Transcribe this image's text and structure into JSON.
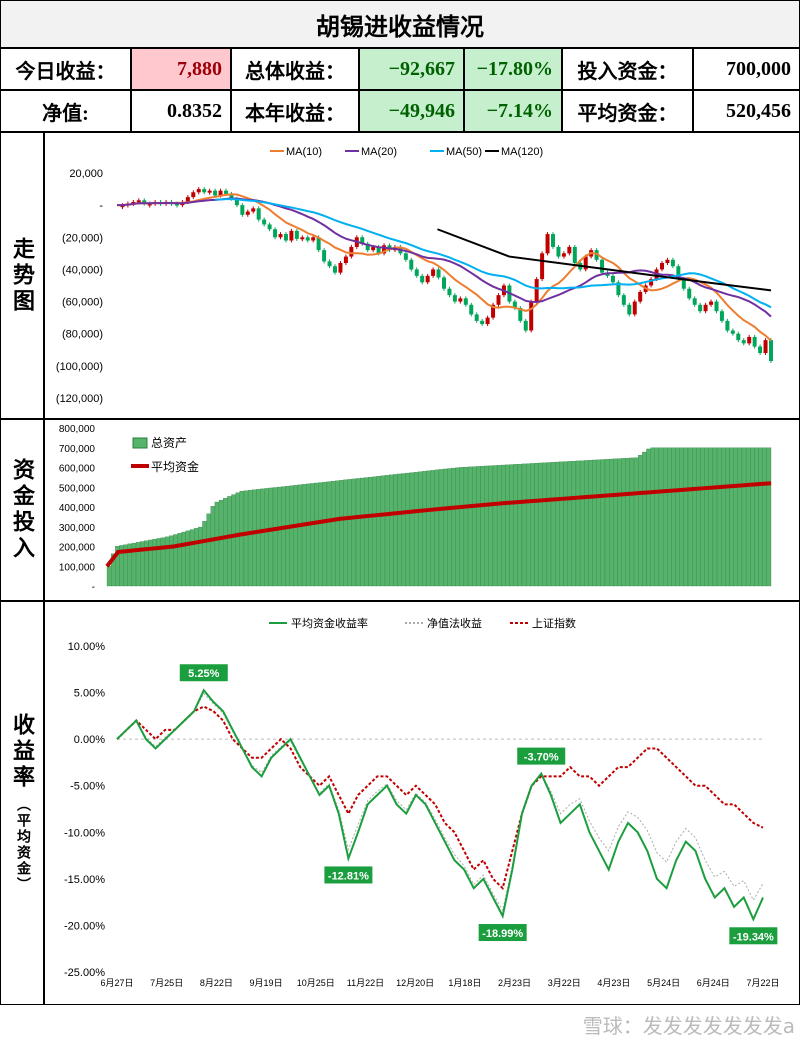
{
  "header": {
    "title": "胡锡进收益情况",
    "today_label": "今日收益：",
    "today_value": "7,880",
    "total_label": "总体收益：",
    "total_value": "−92,667",
    "total_pct": "−17.80%",
    "invest_label": "投入资金：",
    "invest_value": "700,000",
    "nav_label": "净值:",
    "nav_value": "0.8352",
    "ytd_label": "本年收益：",
    "ytd_value": "−49,946",
    "ytd_pct": "−7.14%",
    "avg_label": "平均资金：",
    "avg_value": "520,456"
  },
  "side_labels": {
    "trend": "走势图",
    "capital": "资金投入",
    "returns": "收益率",
    "returns_sub": "（平均资金）"
  },
  "colors": {
    "up": "#c00000",
    "down": "#00a65a",
    "ma10": "#ed7d31",
    "ma20": "#7030a0",
    "ma50": "#00b0f0",
    "ma120": "#000000",
    "bars": "#55b36b",
    "avg": "#c00000",
    "ret": "#1b9e3e",
    "sh": "#c00000"
  },
  "watermark": "雪球：发发发发发发发a",
  "chart_data": [
    {
      "type": "line",
      "legend": [
        "MA(10)",
        "MA(20)",
        "MA(50)",
        "MA(120)"
      ],
      "y_ticks": [
        "20,000",
        "-",
        "(20,000)",
        "(40,000)",
        "(60,000)",
        "(80,000)",
        "(100,000)",
        "(120,000)"
      ],
      "ylim": [
        -120000,
        20000
      ],
      "close": [
        0,
        0,
        1000,
        2000,
        3000,
        1000,
        1000,
        2000,
        1000,
        2000,
        1000,
        0,
        2000,
        5000,
        8000,
        10000,
        8000,
        9000,
        6000,
        9000,
        7000,
        4000,
        0,
        -6000,
        -4000,
        -2000,
        -9000,
        -12000,
        -15000,
        -20000,
        -18000,
        -22000,
        -16000,
        -21000,
        -20000,
        -22000,
        -20000,
        -28000,
        -35000,
        -38000,
        -42000,
        -36000,
        -32000,
        -26000,
        -20000,
        -24000,
        -28000,
        -26000,
        -30000,
        -25000,
        -28000,
        -26000,
        -30000,
        -34000,
        -40000,
        -44000,
        -48000,
        -44000,
        -40000,
        -45000,
        -52000,
        -56000,
        -60000,
        -58000,
        -62000,
        -68000,
        -72000,
        -74000,
        -70000,
        -62000,
        -56000,
        -50000,
        -60000,
        -64000,
        -72000,
        -78000,
        -60000,
        -46000,
        -30000,
        -18000,
        -26000,
        -32000,
        -30000,
        -26000,
        -36000,
        -40000,
        -32000,
        -28000,
        -34000,
        -42000,
        -44000,
        -48000,
        -56000,
        -62000,
        -68000,
        -60000,
        -54000,
        -50000,
        -46000,
        -40000,
        -36000,
        -34000,
        -38000,
        -46000,
        -52000,
        -58000,
        -62000,
        -66000,
        -62000,
        -60000,
        -66000,
        -72000,
        -78000,
        -80000,
        -84000,
        -86000,
        -82000,
        -88000,
        -92000,
        -84000,
        -97000
      ],
      "ma50_start": 18,
      "ma120": [
        [
          0.49,
          -15000
        ],
        [
          0.6,
          -32000
        ],
        [
          0.75,
          -40000
        ],
        [
          0.9,
          -48000
        ],
        [
          1,
          -53000
        ]
      ]
    },
    {
      "type": "bar",
      "legend": [
        "总资产",
        "平均资金"
      ],
      "y_ticks": [
        "800,000",
        "700,000",
        "600,000",
        "500,000",
        "400,000",
        "300,000",
        "200,000",
        "100,000",
        "-"
      ],
      "ylim": [
        0,
        800000
      ],
      "steps": [
        [
          0,
          100000
        ],
        [
          0.01,
          200000
        ],
        [
          0.09,
          250000
        ],
        [
          0.14,
          300000
        ],
        [
          0.16,
          420000
        ],
        [
          0.2,
          480000
        ],
        [
          0.53,
          600000
        ],
        [
          0.8,
          650000
        ],
        [
          0.82,
          700000
        ],
        [
          1,
          700000
        ]
      ],
      "avg": [
        [
          0,
          100000
        ],
        [
          0.01,
          170000
        ],
        [
          0.1,
          200000
        ],
        [
          0.2,
          260000
        ],
        [
          0.35,
          340000
        ],
        [
          0.5,
          390000
        ],
        [
          0.6,
          420000
        ],
        [
          0.8,
          470000
        ],
        [
          1,
          520456
        ]
      ]
    },
    {
      "type": "line",
      "legend": [
        "平均资金收益率",
        "净值法收益",
        "上证指数"
      ],
      "y_ticks": [
        "10.00%",
        "5.00%",
        "0.00%",
        "-5.00%",
        "-10.00%",
        "-15.00%",
        "-20.00%",
        "-25.00%"
      ],
      "x_ticks": [
        "6月27日",
        "7月25日",
        "8月22日",
        "9月19日",
        "10月25日",
        "11月22日",
        "12月20日",
        "1月18日",
        "2月23日",
        "3月22日",
        "4月23日",
        "5月24日",
        "6月24日",
        "7月22日"
      ],
      "ylim": [
        -25,
        10
      ],
      "ret": [
        0,
        1,
        2,
        0,
        -1,
        0,
        1,
        2,
        3,
        5.25,
        4,
        3,
        1,
        -1,
        -3,
        -4,
        -2,
        -1,
        0,
        -2,
        -4,
        -6,
        -5,
        -8,
        -12.81,
        -10,
        -7,
        -6,
        -5,
        -7,
        -8,
        -6,
        -7,
        -9,
        -11,
        -13,
        -14,
        -16,
        -15,
        -17,
        -18.99,
        -14,
        -8,
        -5,
        -3.7,
        -6,
        -9,
        -8,
        -7,
        -10,
        -12,
        -14,
        -11,
        -9,
        -10,
        -12,
        -15,
        -16,
        -13,
        -11,
        -12,
        -15,
        -17,
        -16,
        -18,
        -17,
        -19.34,
        -17
      ],
      "sh": [
        0,
        1,
        2,
        1,
        0,
        1,
        1,
        2,
        3,
        3.5,
        3,
        2,
        0,
        -1,
        -2,
        -2,
        -1,
        0,
        -1,
        -3,
        -4,
        -5,
        -4,
        -6,
        -8,
        -6,
        -5,
        -4,
        -4,
        -5,
        -6,
        -5,
        -6,
        -7,
        -9,
        -10,
        -12,
        -14,
        -13,
        -15,
        -16,
        -12,
        -8,
        -5,
        -4,
        -4,
        -4,
        -3,
        -4,
        -4,
        -5,
        -4,
        -3,
        -3,
        -2,
        -1,
        -1,
        -2,
        -3,
        -4,
        -5,
        -5,
        -6,
        -7,
        -7,
        -8,
        -9,
        -9.5
      ],
      "labels": [
        [
          9,
          "5.25%"
        ],
        [
          24,
          "-12.81%"
        ],
        [
          40,
          "-18.99%"
        ],
        [
          44,
          "-3.70%"
        ],
        [
          66,
          "-19.34%"
        ]
      ]
    }
  ]
}
